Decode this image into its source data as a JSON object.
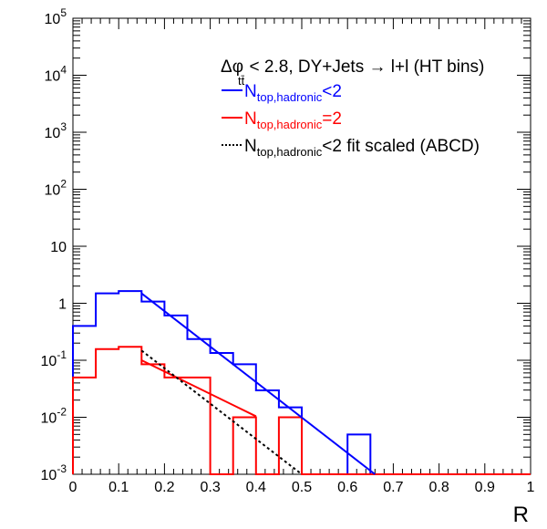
{
  "chart_data": {
    "type": "line",
    "title": "",
    "xlabel": "R",
    "ylabel": "",
    "xlim": [
      0,
      1
    ],
    "ylim": [
      0.001,
      100000
    ],
    "yscale": "log",
    "grid": false,
    "legend_placement": "top-right",
    "x_ticks": [
      "0",
      "0.1",
      "0.2",
      "0.3",
      "0.4",
      "0.5",
      "0.6",
      "0.7",
      "0.8",
      "0.9",
      "1"
    ],
    "y_ticks": [
      {
        "value": 0.001,
        "base": "10",
        "exp": "-3"
      },
      {
        "value": 0.01,
        "base": "10",
        "exp": "-2"
      },
      {
        "value": 0.1,
        "base": "10",
        "exp": "-1"
      },
      {
        "value": 1,
        "base": "1",
        "exp": ""
      },
      {
        "value": 10,
        "base": "10",
        "exp": ""
      },
      {
        "value": 100,
        "base": "10",
        "exp": "2"
      },
      {
        "value": 1000,
        "base": "10",
        "exp": "3"
      },
      {
        "value": 10000,
        "base": "10",
        "exp": "4"
      },
      {
        "value": 100000,
        "base": "10",
        "exp": "5"
      }
    ],
    "header": {
      "main": "Δφ",
      "sub": "tt̄",
      "rest": " < 2.8, DY+Jets → l+l (HT bins)"
    },
    "bin_edges": [
      0,
      0.05,
      0.1,
      0.15,
      0.2,
      0.25,
      0.3,
      0.35,
      0.4,
      0.45,
      0.5,
      0.55,
      0.6,
      0.65,
      0.7,
      0.75,
      0.8,
      0.85,
      0.9,
      0.95,
      1.0
    ],
    "series": [
      {
        "name": "N_top,hadronic<2",
        "label_main": "N",
        "label_sub": "top,hadronic",
        "label_rest": "<2",
        "kind": "histogram",
        "color": "#0000ff",
        "values": [
          0.4,
          1.49,
          1.64,
          1.07,
          0.61,
          0.236,
          0.134,
          0.085,
          0.0297,
          0.0149,
          0,
          0,
          0.005,
          0,
          0,
          0,
          0,
          0,
          0,
          0
        ]
      },
      {
        "name": "N_top,hadronic=2",
        "label_main": "N",
        "label_sub": "top,hadronic",
        "label_rest": "=2",
        "kind": "histogram",
        "color": "#ff0000",
        "values": [
          0.05,
          0.157,
          0.172,
          0.085,
          0.05,
          0.05,
          0,
          0.01,
          0,
          0.01,
          0,
          0,
          0,
          0,
          0,
          0,
          0,
          0,
          0,
          0
        ]
      },
      {
        "name": "N_top,hadronic<2 fit",
        "kind": "fit",
        "color": "#0000ff",
        "x": [
          0.15,
          0.66
        ],
        "y": [
          1.49,
          0.001
        ],
        "in_legend": false
      },
      {
        "name": "N_top,hadronic=2 fit",
        "kind": "fit",
        "color": "#ff0000",
        "x": [
          0.15,
          0.4
        ],
        "y": [
          0.1,
          0.0104
        ],
        "in_legend": false
      },
      {
        "name": "N_top,hadronic<2 fit scaled (ABCD)",
        "label_main": "N",
        "label_sub": "top,hadronic",
        "label_rest": "<2 fit scaled (ABCD)",
        "kind": "fit-dotted",
        "color": "#000000",
        "x": [
          0.15,
          0.5
        ],
        "y": [
          0.148,
          0.001
        ]
      }
    ]
  }
}
